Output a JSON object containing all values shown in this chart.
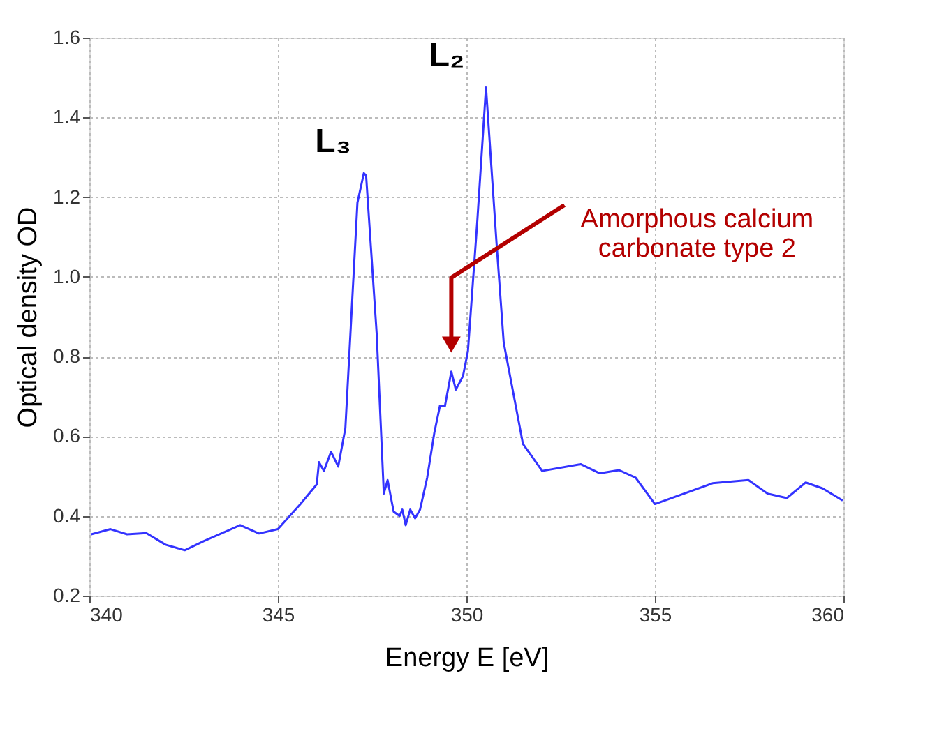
{
  "chart_data": {
    "type": "line",
    "xlabel": "Energy E [eV]",
    "ylabel": "Optical density OD",
    "xlim": [
      340,
      360
    ],
    "xticks": [
      340,
      345,
      350,
      355,
      360
    ],
    "ylim": [
      0.2,
      1.6
    ],
    "yticks": [
      0.2,
      0.4,
      0.6,
      0.8,
      {
        "value": 1.0,
        "label": "1.0"
      },
      1.2,
      1.4,
      1.6
    ],
    "grid": true,
    "marker": "none",
    "line_style": "solid",
    "series": [
      {
        "color": "#3333ff",
        "x": [
          340.05,
          340.56,
          341.0,
          341.51,
          342.02,
          342.53,
          343.04,
          344.0,
          344.5,
          345.0,
          345.58,
          346.03,
          346.09,
          346.22,
          346.41,
          346.6,
          346.79,
          347.11,
          347.28,
          347.34,
          347.62,
          347.81,
          347.91,
          348.07,
          348.23,
          348.3,
          348.39,
          348.51,
          348.64,
          348.77,
          348.96,
          349.15,
          349.3,
          349.43,
          349.6,
          349.72,
          349.91,
          350.04,
          350.29,
          350.52,
          350.8,
          350.99,
          351.5,
          352.01,
          353.03,
          353.54,
          354.05,
          354.49,
          355.0,
          356.53,
          357.48,
          357.99,
          358.5,
          359.0,
          359.45,
          359.98
        ],
        "values": [
          0.354,
          0.367,
          0.354,
          0.357,
          0.328,
          0.314,
          0.337,
          0.377,
          0.356,
          0.367,
          0.428,
          0.479,
          0.535,
          0.513,
          0.561,
          0.524,
          0.62,
          1.186,
          1.26,
          1.254,
          0.858,
          0.456,
          0.49,
          0.411,
          0.4,
          0.416,
          0.377,
          0.416,
          0.394,
          0.416,
          0.496,
          0.609,
          0.677,
          0.675,
          0.762,
          0.717,
          0.751,
          0.813,
          1.141,
          1.475,
          1.084,
          0.835,
          0.581,
          0.513,
          0.53,
          0.507,
          0.515,
          0.496,
          0.43,
          0.482,
          0.49,
          0.456,
          0.445,
          0.484,
          0.469,
          0.439
        ]
      }
    ],
    "annotations": [
      {
        "text": "L₃",
        "x": 347.28,
        "y": 1.26
      },
      {
        "text": "L₂",
        "x": 350.52,
        "y": 1.475
      },
      "Amorphous calcium carbonate type 2"
    ]
  }
}
